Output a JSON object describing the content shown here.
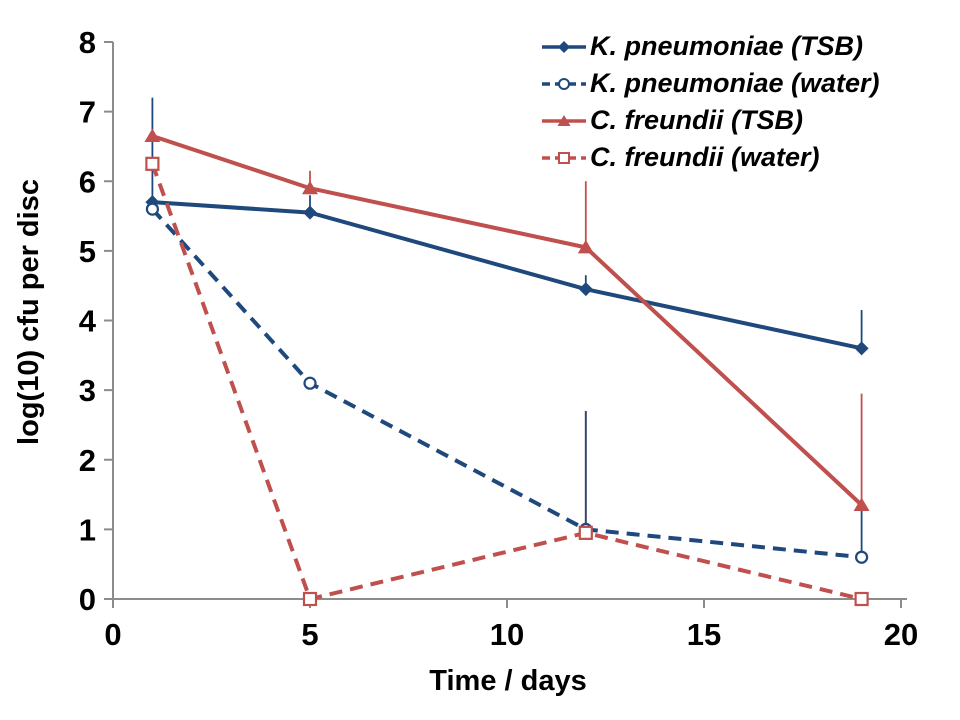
{
  "chart_data": {
    "type": "line",
    "title": "",
    "xlabel": "Time / days",
    "ylabel": "log(10) cfu per disc",
    "xlim": [
      0,
      20
    ],
    "ylim": [
      0,
      8
    ],
    "xticks": [
      0,
      5,
      10,
      15,
      20
    ],
    "yticks": [
      0,
      1,
      2,
      3,
      4,
      5,
      6,
      7,
      8
    ],
    "grid": false,
    "legend_position": "top-right",
    "axis_color": "#8c8c8c",
    "x": [
      1,
      5,
      12,
      19
    ],
    "series": [
      {
        "name": "K. pneumoniae (TSB)",
        "color": "#1F497D",
        "style": "solid",
        "marker": "diamond-filled",
        "values": [
          5.7,
          5.55,
          4.45,
          3.6
        ],
        "error_up": [
          1.5,
          0.25,
          0.2,
          0.55
        ]
      },
      {
        "name": "K. pneumoniae (water)",
        "color": "#1F497D",
        "style": "dashed",
        "marker": "circle-open",
        "values": [
          5.6,
          3.1,
          1.0,
          0.6
        ],
        "error_up": [
          0,
          0,
          1.7,
          0.75
        ]
      },
      {
        "name": "C. freundii (TSB)",
        "color": "#C0504D",
        "style": "solid",
        "marker": "triangle-filled",
        "values": [
          6.65,
          5.9,
          5.05,
          1.35
        ],
        "error_up": [
          0,
          0.25,
          0.95,
          1.6
        ]
      },
      {
        "name": "C. freundii (water)",
        "color": "#C0504D",
        "style": "dashed",
        "marker": "square-open",
        "values": [
          6.25,
          0,
          0.95,
          0
        ],
        "error_up": [
          0,
          0,
          1.75,
          0
        ]
      }
    ]
  }
}
